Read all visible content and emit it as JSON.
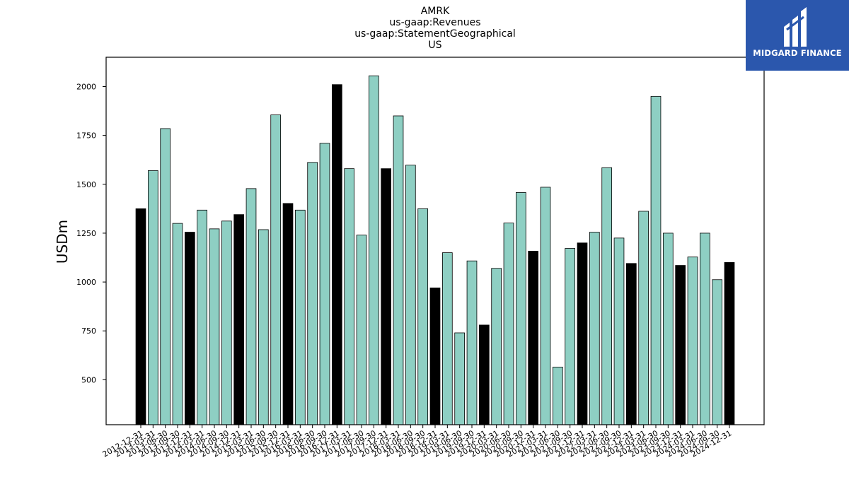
{
  "chart_data": {
    "type": "bar",
    "title_lines": [
      "AMRK",
      "us-gaap:Revenues",
      "us-gaap:StatementGeographical",
      "US"
    ],
    "ylabel": "USDm",
    "ylim": [
      270,
      2150
    ],
    "yticks": [
      500,
      750,
      1000,
      1250,
      1500,
      1750,
      2000
    ],
    "grid": false,
    "colors": {
      "quarter": "#8ecfc3",
      "year_end": "#000000",
      "edge": "#000000"
    },
    "categories": [
      "2012-12-31",
      "2013-03-31",
      "2013-06-30",
      "2013-09-30",
      "2013-12-31",
      "2014-03-31",
      "2014-06-30",
      "2014-09-30",
      "2014-12-31",
      "2015-03-31",
      "2015-06-30",
      "2015-09-30",
      "2015-12-31",
      "2016-03-31",
      "2016-06-30",
      "2016-09-30",
      "2016-12-31",
      "2017-03-31",
      "2017-06-30",
      "2017-09-30",
      "2017-12-31",
      "2018-03-31",
      "2018-06-30",
      "2018-09-30",
      "2018-12-31",
      "2019-03-31",
      "2019-06-30",
      "2019-09-30",
      "2019-12-31",
      "2020-03-31",
      "2020-06-30",
      "2020-09-30",
      "2020-12-31",
      "2021-03-31",
      "2021-06-30",
      "2021-09-30",
      "2021-12-31",
      "2022-03-31",
      "2022-06-30",
      "2022-09-30",
      "2022-12-31",
      "2023-03-31",
      "2023-06-30",
      "2023-09-30",
      "2023-12-31",
      "2024-03-31",
      "2024-06-30",
      "2024-09-30",
      "2024-12-31"
    ],
    "values": [
      1375,
      1570,
      1785,
      1300,
      1255,
      1368,
      1272,
      1312,
      1345,
      1478,
      1268,
      1855,
      1402,
      1368,
      1612,
      1710,
      2010,
      1580,
      1240,
      2055,
      1580,
      1850,
      1598,
      1375,
      970,
      1150,
      740,
      1108,
      780,
      1070,
      1302,
      1458,
      1158,
      1485,
      565,
      1172,
      1200,
      1255,
      1585,
      1225,
      1095,
      1362,
      1950,
      1250,
      1085,
      1128,
      1250,
      1012,
      1100
    ],
    "highlight": [
      true,
      false,
      false,
      false,
      true,
      false,
      false,
      false,
      true,
      false,
      false,
      false,
      true,
      false,
      false,
      false,
      true,
      false,
      false,
      false,
      true,
      false,
      false,
      false,
      true,
      false,
      false,
      false,
      true,
      false,
      false,
      false,
      true,
      false,
      false,
      false,
      true,
      false,
      false,
      false,
      true,
      false,
      false,
      false,
      true,
      false,
      false,
      false,
      true
    ]
  },
  "logo": {
    "text": "MIDGARD FINANCE"
  }
}
